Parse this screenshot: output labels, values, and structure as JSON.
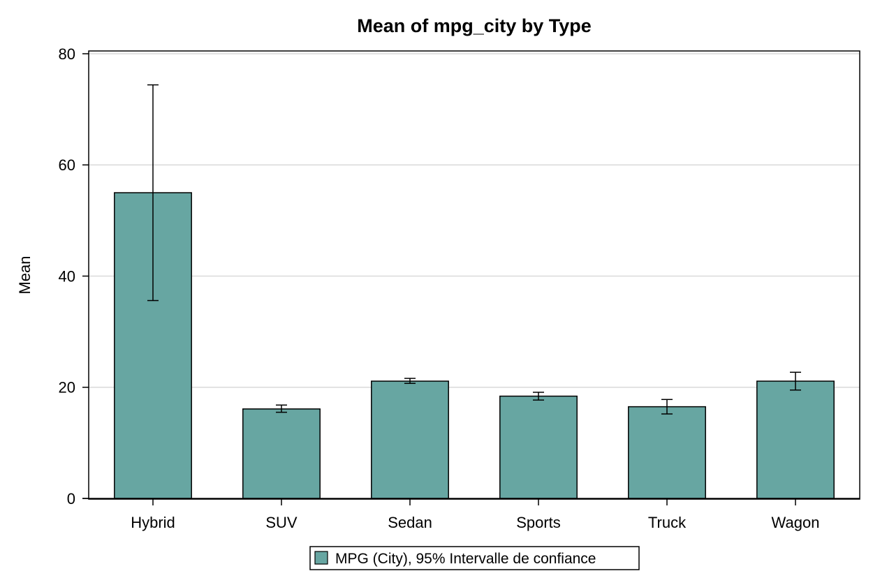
{
  "chart_data": {
    "type": "bar",
    "title": "Mean of mpg_city by Type",
    "xlabel": "",
    "ylabel": "Mean",
    "ylim": [
      0,
      80.5
    ],
    "yticks": [
      0,
      20,
      40,
      60,
      80
    ],
    "grid": true,
    "categories": [
      "Hybrid",
      "SUV",
      "Sedan",
      "Sports",
      "Truck",
      "Wagon"
    ],
    "series": [
      {
        "name": "MPG (City), 95% Intervalle de confiance",
        "values": [
          55.0,
          16.1,
          21.1,
          18.4,
          16.5,
          21.1
        ],
        "ci_lower": [
          35.6,
          15.5,
          20.7,
          17.7,
          15.2,
          19.5
        ],
        "ci_upper": [
          74.4,
          16.8,
          21.6,
          19.1,
          17.8,
          22.7
        ]
      }
    ],
    "legend_position": "bottom-center",
    "colors": {
      "bar_fill": "#67a6a2",
      "bar_stroke": "#000000",
      "grid": "#d9d9d9"
    }
  }
}
